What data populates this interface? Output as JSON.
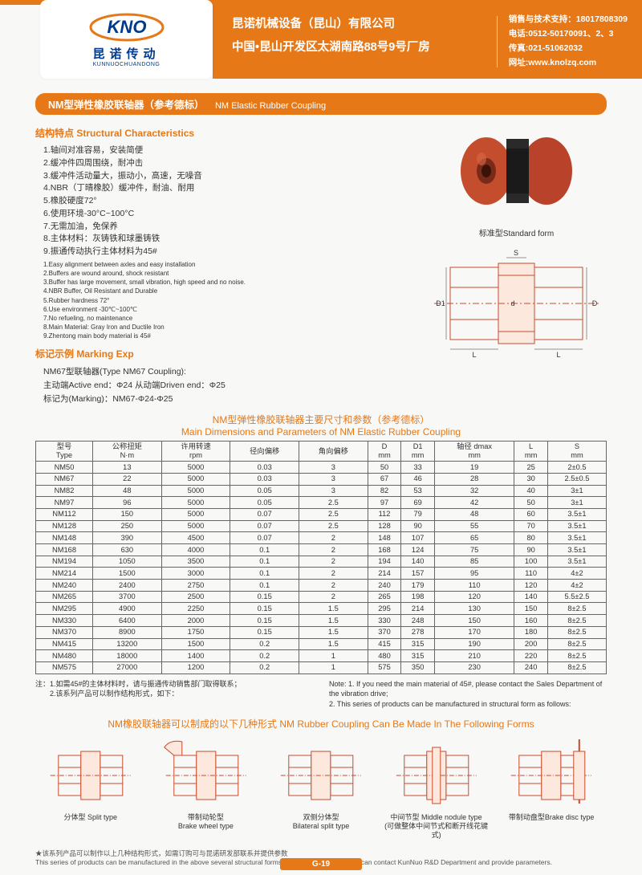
{
  "header": {
    "logo_cn": "昆诺传动",
    "logo_pinyin": "KUNNUOCHUANDONG",
    "company_cn1": "昆诺机械设备（昆山）有限公司",
    "company_cn2": "中国•昆山开发区太湖南路88号9号厂房",
    "contact1": "销售与技术支持：18017808309",
    "contact2": "电话:0512-50170091、2、3",
    "contact3": "传真:021-51062032",
    "contact4": "网址:www.knolzq.com"
  },
  "title": {
    "cn": "NM型弹性橡胶联轴器（参考德标）",
    "en": "NM Elastic Rubber Coupling"
  },
  "structural": {
    "heading": "结构特点 Structural Characteristics",
    "cn": [
      "1.轴间对准容易，安装简便",
      "2.缓冲件四周围绕，耐冲击",
      "3.缓冲件活动量大，振动小，高速，无噪音",
      "4.NBR（丁晴橡胶）缓冲件，耐油、耐用",
      "5.橡胶硬度72°",
      "6.使用环境-30°C~100°C",
      "7.无需加油，免保养",
      "8.主体材料：灰铸铁和球墨铸铁",
      "9.振通传动执行主体材料为45#"
    ],
    "en_list": [
      "1.Easy alignment between axles and easy installation",
      "2.Buffers are wound around, shock resistant",
      "3.Buffer has large movement, small vibration, high speed and no noise.",
      "4.NBR  Buffer, Oil Resistant and Durable",
      "5.Rubber hardness 72°",
      "6.Use environment -30℃~100℃",
      "7.No refueling, no maintenance",
      "8.Main Material: Gray Iron and Ductile Iron",
      "9.Zhentong main body material is 45#"
    ]
  },
  "marking": {
    "heading": "标记示例 Marking Exp",
    "l1": "NM67型联轴器(Type NM67 Coupling):",
    "l2": "主动端Active end：Φ24  从动端Driven end：Φ25",
    "l3": "标记为(Marking)：NM67-Φ24-Φ25"
  },
  "image_caption": "标准型Standard form",
  "table": {
    "title_cn": "NM型弹性橡胶联轴器主要尺寸和参数（参考德标）",
    "title_en": "Main Dimensions and Parameters of NM Elastic Rubber Coupling",
    "headers": [
      [
        "型号",
        "Type"
      ],
      [
        "公称扭矩",
        "N·m"
      ],
      [
        "许用转速",
        "rpm"
      ],
      [
        "径向偏移",
        ""
      ],
      [
        "角向偏移",
        ""
      ],
      [
        "D",
        "mm"
      ],
      [
        "D1",
        "mm"
      ],
      [
        "轴径 dmax",
        "mm"
      ],
      [
        "L",
        "mm"
      ],
      [
        "S",
        "mm"
      ]
    ],
    "rows": [
      [
        "NM50",
        "13",
        "5000",
        "0.03",
        "3",
        "50",
        "33",
        "19",
        "25",
        "2±0.5"
      ],
      [
        "NM67",
        "22",
        "5000",
        "0.03",
        "3",
        "67",
        "46",
        "28",
        "30",
        "2.5±0.5"
      ],
      [
        "NM82",
        "48",
        "5000",
        "0.05",
        "3",
        "82",
        "53",
        "32",
        "40",
        "3±1"
      ],
      [
        "NM97",
        "96",
        "5000",
        "0.05",
        "2.5",
        "97",
        "69",
        "42",
        "50",
        "3±1"
      ],
      [
        "NM112",
        "150",
        "5000",
        "0.07",
        "2.5",
        "112",
        "79",
        "48",
        "60",
        "3.5±1"
      ],
      [
        "NM128",
        "250",
        "5000",
        "0.07",
        "2.5",
        "128",
        "90",
        "55",
        "70",
        "3.5±1"
      ],
      [
        "NM148",
        "390",
        "4500",
        "0.07",
        "2",
        "148",
        "107",
        "65",
        "80",
        "3.5±1"
      ],
      [
        "NM168",
        "630",
        "4000",
        "0.1",
        "2",
        "168",
        "124",
        "75",
        "90",
        "3.5±1"
      ],
      [
        "NM194",
        "1050",
        "3500",
        "0.1",
        "2",
        "194",
        "140",
        "85",
        "100",
        "3.5±1"
      ],
      [
        "NM214",
        "1500",
        "3000",
        "0.1",
        "2",
        "214",
        "157",
        "95",
        "110",
        "4±2"
      ],
      [
        "NM240",
        "2400",
        "2750",
        "0.1",
        "2",
        "240",
        "179",
        "110",
        "120",
        "4±2"
      ],
      [
        "NM265",
        "3700",
        "2500",
        "0.15",
        "2",
        "265",
        "198",
        "120",
        "140",
        "5.5±2.5"
      ],
      [
        "NM295",
        "4900",
        "2250",
        "0.15",
        "1.5",
        "295",
        "214",
        "130",
        "150",
        "8±2.5"
      ],
      [
        "NM330",
        "6400",
        "2000",
        "0.15",
        "1.5",
        "330",
        "248",
        "150",
        "160",
        "8±2.5"
      ],
      [
        "NM370",
        "8900",
        "1750",
        "0.15",
        "1.5",
        "370",
        "278",
        "170",
        "180",
        "8±2.5"
      ],
      [
        "NM415",
        "13200",
        "1500",
        "0.2",
        "1.5",
        "415",
        "315",
        "190",
        "200",
        "8±2.5"
      ],
      [
        "NM480",
        "18000",
        "1400",
        "0.2",
        "1",
        "480",
        "315",
        "210",
        "220",
        "8±2.5"
      ],
      [
        "NM575",
        "27000",
        "1200",
        "0.2",
        "1",
        "575",
        "350",
        "230",
        "240",
        "8±2.5"
      ]
    ]
  },
  "notes": {
    "cn": "注：1.如需45#的主体材料时，请与振通传动销售部门取得联系；\n　　2.该系列产品可以制作结构形式，如下：",
    "en": "Note: 1. If you need the main material of 45#, please contact the Sales Department of the vibration drive;\n      2. This series of products can be manufactured in structural form as follows:"
  },
  "forms": {
    "title": "NM橡胶联轴器可以制成的以下几种形式  NM Rubber Coupling Can Be Made In The Following Forms",
    "items": [
      {
        "cn": "分体型 Split type",
        "en": ""
      },
      {
        "cn": "带制动轮型",
        "en": "Brake wheel type"
      },
      {
        "cn": "双侧分体型",
        "en": "Bilateral split type"
      },
      {
        "cn": "中间节型 Middle nodule type",
        "en": "(可做整体中间节式和断开线花键式)"
      },
      {
        "cn": "带制动盘型Brake disc type",
        "en": ""
      }
    ]
  },
  "footnote": {
    "cn": "★该系列产品可以制作以上几种结构形式，如需订购可与昆诺研发部联系并提供参数",
    "en": "This series of products can be manufactured in the above several structural forms. If you need to order, you can contact  KunNuo R&D Department and provide parameters."
  },
  "page_num": "G-19",
  "colors": {
    "brand": "#e67817",
    "line": "#c94a2e",
    "coupling": "#c44d2e"
  }
}
